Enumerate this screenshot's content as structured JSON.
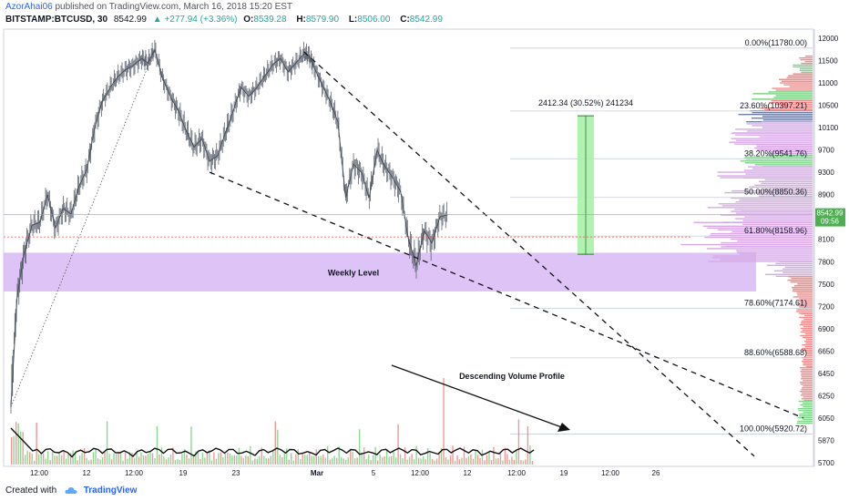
{
  "header": {
    "author": "AzorAhai06",
    "published_text": "published on TradingView.com, March 16, 2018 15:20 EST",
    "symbol": "BITSTAMP:BTCUSD, 30",
    "last": "8542.99",
    "change_label": "▲ +277.94 (+3.36%)",
    "open_label": "O:",
    "open": "8539.28",
    "high_label": "H:",
    "high": "8579.90",
    "low_label": "L:",
    "low": "8506.00",
    "close_label": "C:",
    "close": "8542.99"
  },
  "footer": {
    "created_text": "Created with",
    "brand": "TradingView"
  },
  "colors": {
    "up": "#26a69a",
    "down": "#ef5350",
    "zone": "#d8b8f5",
    "measure": "#a8f0a8",
    "price_badge": "#4caf50",
    "fib_line": "#1a237e"
  },
  "chart_data": {
    "type": "candlestick",
    "price_axis": {
      "ticks": [
        12000,
        11500,
        11000,
        10500,
        10100,
        9700,
        9300,
        8900,
        8500,
        8100,
        7800,
        7500,
        7200,
        6900,
        6650,
        6450,
        6250,
        6050,
        5870,
        5700
      ],
      "range": [
        5700,
        12100
      ]
    },
    "time_axis": {
      "labels": [
        "12:00",
        "12",
        "12:00",
        "19",
        "23",
        "Mar",
        "5",
        "12:00",
        "12",
        "12:00",
        "19",
        "12:00",
        "26"
      ]
    },
    "last_price": "8542.99",
    "last_countdown": "09:56",
    "fib_levels": [
      {
        "label": "0.00%(11780.00)",
        "price": 11780
      },
      {
        "label": "23.60%(10397.21)",
        "price": 10397.21
      },
      {
        "label": "38.20%(9541.76)",
        "price": 9541.76
      },
      {
        "label": "50.00%(8850.36)",
        "price": 8850.36
      },
      {
        "label": "61.80%(8158.96)",
        "price": 8158.96
      },
      {
        "label": "78.60%(7174.61)",
        "price": 7174.61
      },
      {
        "label": "88.60%(6588.68)",
        "price": 6588.68
      },
      {
        "label": "100.00%(5920.72)",
        "price": 5920.72
      }
    ],
    "zone": {
      "label": "Weekly Level",
      "top": 7920,
      "bottom": 7400
    },
    "measure": {
      "label": "2412.34 (30.52%) 241234",
      "from": 7900,
      "to": 10312
    },
    "annotations": [
      {
        "text": "Descending Volume Profile"
      }
    ],
    "price_path": [
      [
        0.0,
        6150
      ],
      [
        0.012,
        7350
      ],
      [
        0.025,
        7900
      ],
      [
        0.04,
        8350
      ],
      [
        0.055,
        8400
      ],
      [
        0.07,
        8900
      ],
      [
        0.085,
        8300
      ],
      [
        0.1,
        8650
      ],
      [
        0.115,
        8550
      ],
      [
        0.13,
        9050
      ],
      [
        0.145,
        9350
      ],
      [
        0.16,
        10100
      ],
      [
        0.175,
        10600
      ],
      [
        0.19,
        10900
      ],
      [
        0.205,
        11150
      ],
      [
        0.22,
        11300
      ],
      [
        0.235,
        11400
      ],
      [
        0.25,
        11550
      ],
      [
        0.262,
        11450
      ],
      [
        0.275,
        11750
      ],
      [
        0.29,
        11100
      ],
      [
        0.305,
        10700
      ],
      [
        0.32,
        10400
      ],
      [
        0.335,
        10050
      ],
      [
        0.35,
        9750
      ],
      [
        0.365,
        9900
      ],
      [
        0.38,
        9500
      ],
      [
        0.395,
        9600
      ],
      [
        0.41,
        10000
      ],
      [
        0.425,
        10400
      ],
      [
        0.44,
        10900
      ],
      [
        0.455,
        10700
      ],
      [
        0.47,
        10900
      ],
      [
        0.485,
        11150
      ],
      [
        0.5,
        11400
      ],
      [
        0.515,
        11550
      ],
      [
        0.53,
        11250
      ],
      [
        0.545,
        11450
      ],
      [
        0.56,
        11650
      ],
      [
        0.57,
        11600
      ],
      [
        0.58,
        11350
      ],
      [
        0.595,
        10950
      ],
      [
        0.61,
        10600
      ],
      [
        0.625,
        10200
      ],
      [
        0.64,
        8850
      ],
      [
        0.655,
        9450
      ],
      [
        0.67,
        9300
      ],
      [
        0.685,
        8850
      ],
      [
        0.7,
        9700
      ],
      [
        0.715,
        9400
      ],
      [
        0.73,
        9200
      ],
      [
        0.745,
        8950
      ],
      [
        0.76,
        8100
      ],
      [
        0.775,
        7750
      ],
      [
        0.79,
        8250
      ],
      [
        0.805,
        8050
      ],
      [
        0.82,
        8500
      ],
      [
        0.835,
        8540
      ]
    ],
    "volume_profile": [
      {
        "price": 11600,
        "size": 0.1,
        "color": "red"
      },
      {
        "price": 11400,
        "size": 0.15,
        "color": "green"
      },
      {
        "price": 11200,
        "size": 0.25,
        "color": "red"
      },
      {
        "price": 11000,
        "size": 0.3,
        "color": "red"
      },
      {
        "price": 10800,
        "size": 0.45,
        "color": "green"
      },
      {
        "price": 10600,
        "size": 0.4,
        "color": "red"
      },
      {
        "price": 10400,
        "size": 0.55,
        "color": "blue"
      },
      {
        "price": 10200,
        "size": 0.6,
        "color": "purple"
      },
      {
        "price": 10000,
        "size": 0.7,
        "color": "purple"
      },
      {
        "price": 9800,
        "size": 0.55,
        "color": "purple"
      },
      {
        "price": 9600,
        "size": 0.6,
        "color": "green"
      },
      {
        "price": 9400,
        "size": 0.75,
        "color": "purple"
      },
      {
        "price": 9200,
        "size": 0.55,
        "color": "purple"
      },
      {
        "price": 9000,
        "size": 0.65,
        "color": "purple"
      },
      {
        "price": 8800,
        "size": 0.85,
        "color": "purple"
      },
      {
        "price": 8600,
        "size": 0.8,
        "color": "purple"
      },
      {
        "price": 8400,
        "size": 0.9,
        "color": "purple"
      },
      {
        "price": 8200,
        "size": 1.0,
        "color": "purple"
      },
      {
        "price": 8000,
        "size": 0.8,
        "color": "purple"
      },
      {
        "price": 7800,
        "size": 0.35,
        "color": "purple"
      },
      {
        "price": 7600,
        "size": 0.2,
        "color": "red"
      },
      {
        "price": 7400,
        "size": 0.15,
        "color": "red"
      },
      {
        "price": 7100,
        "size": 0.1,
        "color": "red"
      },
      {
        "price": 6800,
        "size": 0.08,
        "color": "red"
      },
      {
        "price": 6500,
        "size": 0.1,
        "color": "red"
      },
      {
        "price": 6200,
        "size": 0.12,
        "color": "green"
      }
    ]
  }
}
